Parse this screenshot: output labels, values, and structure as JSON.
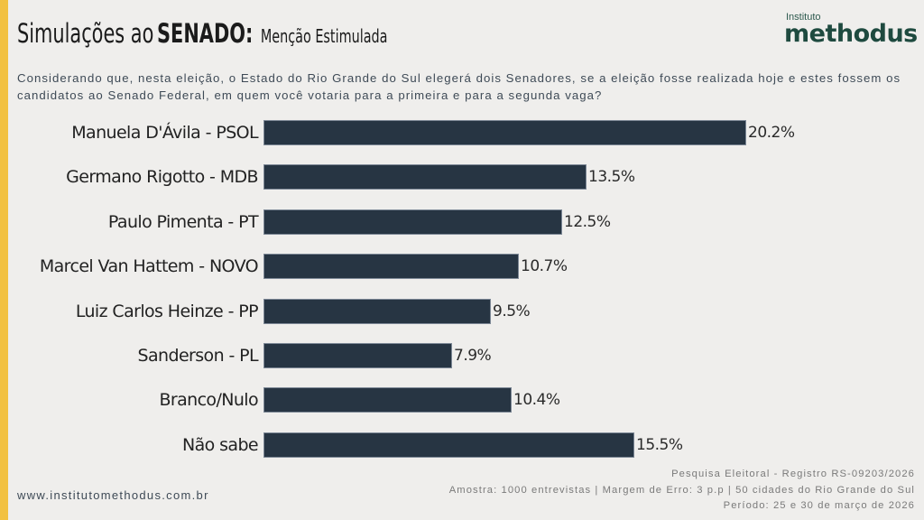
{
  "header": {
    "title_main": "Simulações ao",
    "title_bold": "SENADO:",
    "title_sub": "Menção Estimulada"
  },
  "logo": {
    "small": "Instituto",
    "big": "methodus"
  },
  "question": "Considerando que, nesta eleição, o Estado do Rio Grande do Sul elegerá dois Senadores, se a eleição fosse realizada hoje e estes fossem os candidatos ao Senado Federal, em quem você votaria para a primeira e para a segunda vaga?",
  "colors": {
    "accent_stripe": "#f2c141",
    "bar": "#273543",
    "logo": "#1e4a3f"
  },
  "chart_data": {
    "type": "bar",
    "orientation": "horizontal",
    "title": "Simulações ao SENADO: Menção Estimulada",
    "xlabel": "",
    "ylabel": "",
    "grid": false,
    "unit": "%",
    "xlim": [
      0,
      20.2
    ],
    "categories": [
      "Manuela D'Ávila - PSOL",
      "Germano Rigotto - MDB",
      "Paulo Pimenta - PT",
      "Marcel Van Hattem - NOVO",
      "Luiz Carlos Heinze - PP",
      "Sanderson - PL",
      "Branco/Nulo",
      "Não sabe"
    ],
    "values": [
      20.2,
      13.5,
      12.5,
      10.7,
      9.5,
      7.9,
      10.4,
      15.5
    ],
    "value_labels": [
      "20.2%",
      "13.5%",
      "12.5%",
      "10.7%",
      "9.5%",
      "7.9%",
      "10.4%",
      "15.5%"
    ]
  },
  "footer": {
    "website": "www.institutomethodus.com.br",
    "line1": "Pesquisa Eleitoral - Registro RS-09203/2026",
    "line2": "Amostra: 1000 entrevistas | Margem de Erro: 3 p.p | 50 cidades do Rio Grande do Sul",
    "line3": "Período: 25 e 30 de março de 2026"
  }
}
